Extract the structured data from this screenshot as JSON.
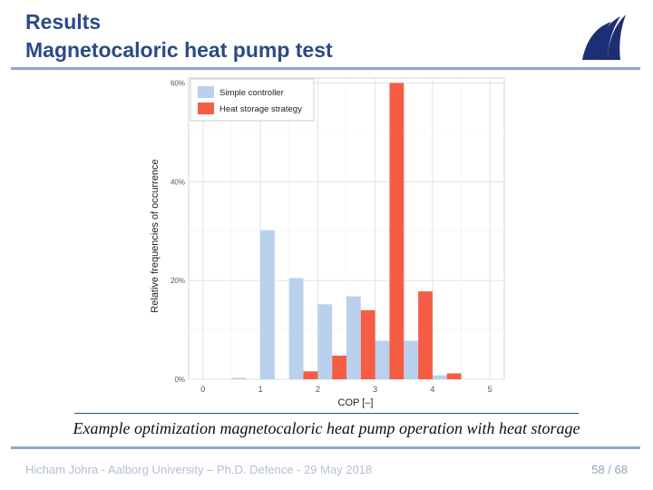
{
  "slide": {
    "title_line1": "Results",
    "title_line2": "Magnetocaloric heat pump test",
    "caption": "Example optimization magnetocaloric heat pump operation with heat storage",
    "footer": "Hicham Johra - Aalborg University – Ph.D. Defence - 29 May 2018",
    "page_number": "58 / 68",
    "logo_icon": "aau-wave-logo-icon"
  },
  "colors": {
    "title": "#2b4a86",
    "simple_controller": "#b9d1ec",
    "heat_storage": "#f55e45",
    "accent_rule": "#8fa7d3"
  },
  "chart_data": {
    "type": "bar",
    "xlabel": "COP [–]",
    "ylabel": "Relative frequencies of occurrence",
    "xlim": [
      -0.25,
      5.25
    ],
    "ylim": [
      0,
      61
    ],
    "xticks": [
      0,
      1,
      2,
      3,
      4,
      5
    ],
    "xtick_labels": [
      "0",
      "1",
      "2",
      "3",
      "4",
      "5"
    ],
    "yticks": [
      0,
      20,
      40,
      60
    ],
    "ytick_labels": [
      "0%",
      "20%",
      "40%",
      "60%"
    ],
    "bar_width": 0.25,
    "grid": true,
    "legend_position": "top-left",
    "series": [
      {
        "name": "Simple controller",
        "x": [
          0.625,
          1.125,
          1.625,
          2.125,
          2.625,
          3.125,
          3.625,
          4.125
        ],
        "values": [
          0.3,
          30.2,
          20.5,
          15.2,
          16.8,
          7.8,
          7.8,
          0.8
        ]
      },
      {
        "name": "Heat storage strategy",
        "x": [
          1.875,
          2.375,
          2.875,
          3.375,
          3.875,
          4.375
        ],
        "values": [
          1.6,
          4.8,
          14.0,
          60.0,
          17.8,
          1.2
        ]
      }
    ]
  }
}
